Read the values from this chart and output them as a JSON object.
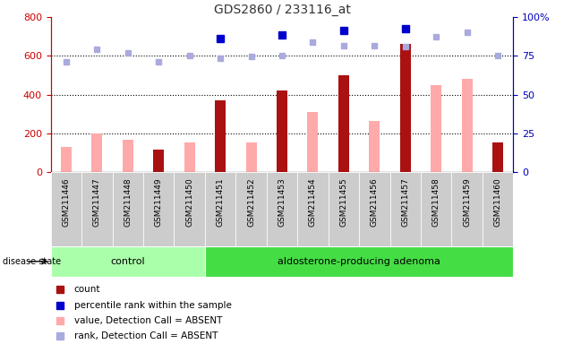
{
  "title": "GDS2860 / 233116_at",
  "samples": [
    "GSM211446",
    "GSM211447",
    "GSM211448",
    "GSM211449",
    "GSM211450",
    "GSM211451",
    "GSM211452",
    "GSM211453",
    "GSM211454",
    "GSM211455",
    "GSM211456",
    "GSM211457",
    "GSM211458",
    "GSM211459",
    "GSM211460"
  ],
  "count_values": [
    0,
    0,
    0,
    115,
    0,
    370,
    0,
    420,
    0,
    500,
    0,
    660,
    0,
    0,
    155
  ],
  "value_absent": [
    130,
    200,
    165,
    0,
    155,
    0,
    155,
    0,
    310,
    0,
    265,
    0,
    450,
    480,
    0
  ],
  "rank_absent": [
    570,
    635,
    615,
    570,
    600,
    590,
    595,
    600,
    670,
    655,
    655,
    650,
    700,
    720,
    600
  ],
  "percentile_rank": [
    null,
    null,
    null,
    null,
    null,
    690,
    null,
    710,
    null,
    730,
    null,
    740,
    null,
    null,
    null
  ],
  "groups": {
    "control": [
      0,
      1,
      2,
      3,
      4
    ],
    "adenoma": [
      5,
      6,
      7,
      8,
      9,
      10,
      11,
      12,
      13,
      14
    ]
  },
  "group_labels": [
    "control",
    "aldosterone-producing adenoma"
  ],
  "ylim_left": [
    0,
    800
  ],
  "ylim_right": [
    0,
    100
  ],
  "yticks_left": [
    0,
    200,
    400,
    600,
    800
  ],
  "yticks_right": [
    0,
    25,
    50,
    75,
    100
  ],
  "bar_color_count": "#aa1111",
  "bar_color_absent": "#ffaaaa",
  "dot_color_rank_absent": "#aaaadd",
  "dot_color_percentile": "#0000cc",
  "title_color": "#333333",
  "left_axis_color": "#cc0000",
  "right_axis_color": "#0000bb",
  "cell_bg_color": "#cccccc",
  "plot_bg_color": "#ffffff",
  "group_bg_control": "#aaffaa",
  "group_bg_adenoma": "#44dd44",
  "legend_items": [
    {
      "label": "count",
      "color": "#aa1111",
      "marker": "s"
    },
    {
      "label": "percentile rank within the sample",
      "color": "#0000cc",
      "marker": "s"
    },
    {
      "label": "value, Detection Call = ABSENT",
      "color": "#ffaaaa",
      "marker": "s"
    },
    {
      "label": "rank, Detection Call = ABSENT",
      "color": "#aaaadd",
      "marker": "s"
    }
  ]
}
